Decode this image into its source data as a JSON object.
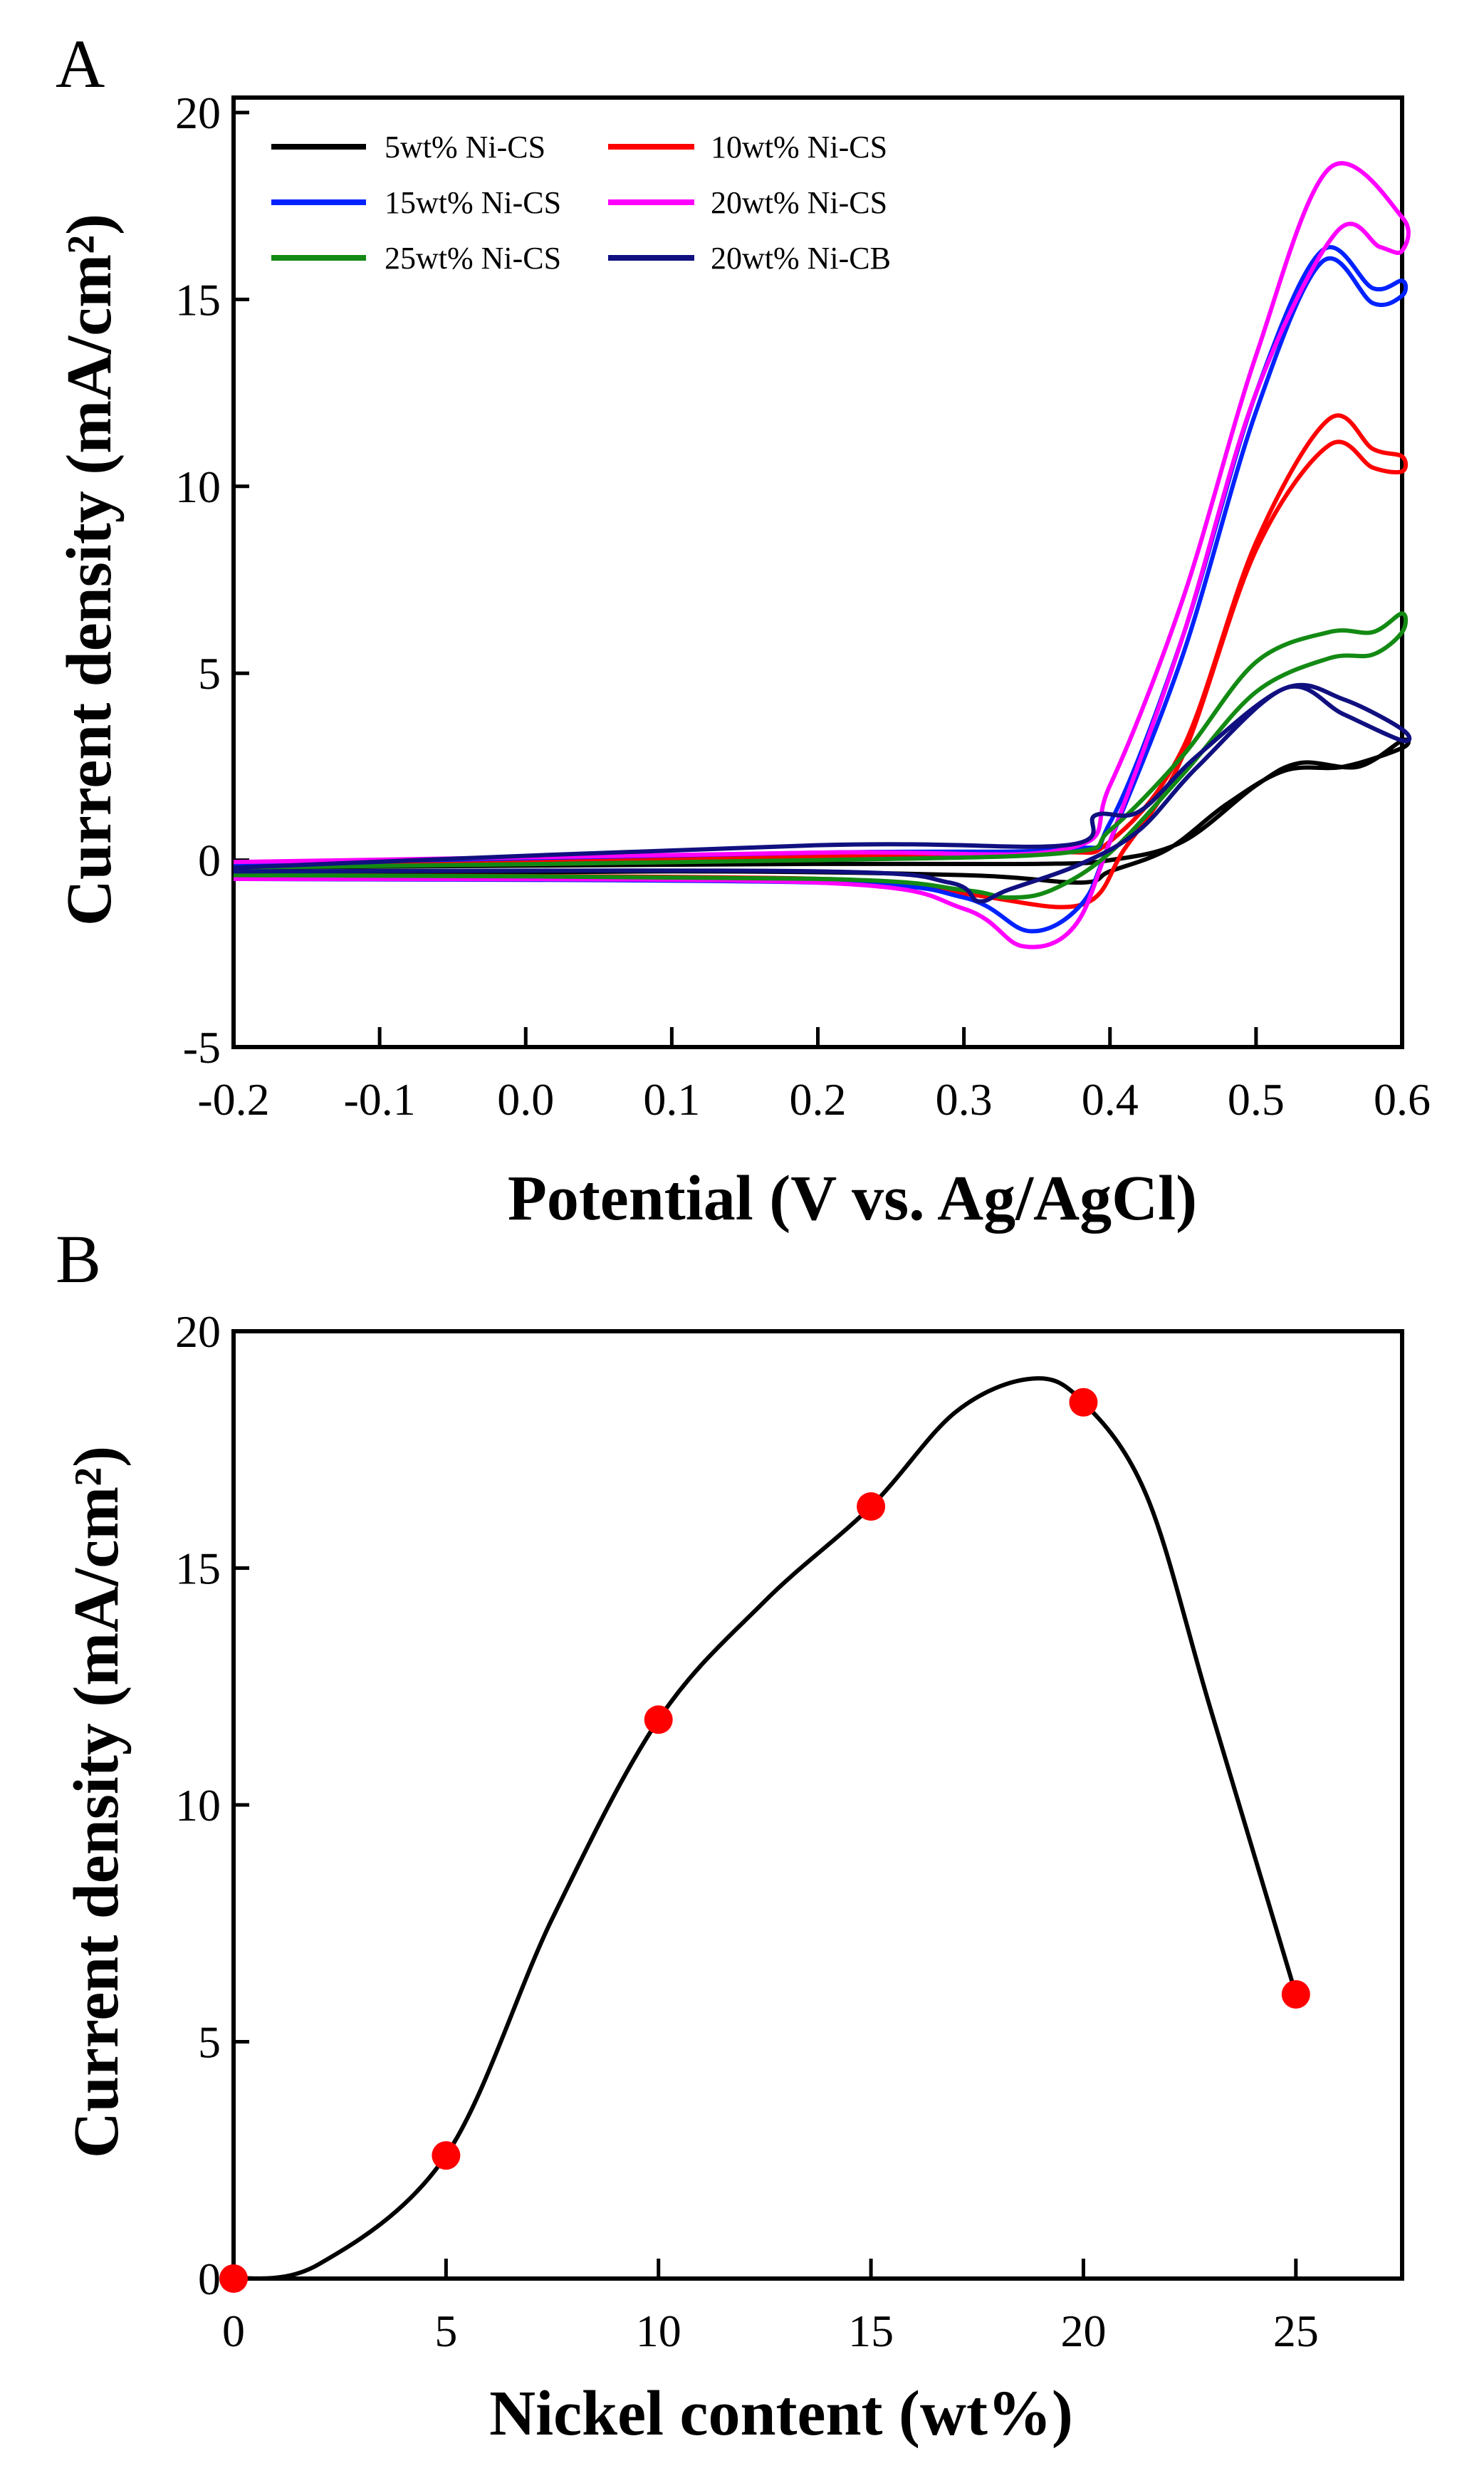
{
  "chart_data": [
    {
      "panel": "A",
      "type": "line",
      "xlabel": "Potential (V vs. Ag/AgCl)",
      "ylabel": "Current density (mA/cm²)",
      "xlim": [
        -0.2,
        0.6
      ],
      "ylim": [
        -5,
        20.4
      ],
      "xticks": [
        -0.2,
        -0.1,
        0.0,
        0.1,
        0.2,
        0.3,
        0.4,
        0.5,
        0.6
      ],
      "xtick_labels": [
        "-0.2",
        "-0.1",
        "0.0",
        "0.1",
        "0.2",
        "0.3",
        "0.4",
        "0.5",
        "0.6"
      ],
      "yticks": [
        -5,
        0,
        5,
        10,
        15,
        20
      ],
      "ytick_labels": [
        "-5",
        "0",
        "5",
        "10",
        "15",
        "20"
      ],
      "legend_position": "top-left",
      "grid": false,
      "series": [
        {
          "name": "5wt% Ni-CS",
          "color": "#000000",
          "points": [
            [
              -0.2,
              -0.2
            ],
            [
              0.2,
              -0.1
            ],
            [
              0.35,
              -0.1
            ],
            [
              0.4,
              0.0
            ],
            [
              0.45,
              0.5
            ],
            [
              0.5,
              2.0
            ],
            [
              0.53,
              2.6
            ],
            [
              0.57,
              2.5
            ],
            [
              0.6,
              3.2
            ],
            [
              0.6,
              3.0
            ],
            [
              0.56,
              2.5
            ],
            [
              0.52,
              2.4
            ],
            [
              0.48,
              1.5
            ],
            [
              0.44,
              0.3
            ],
            [
              0.4,
              -0.3
            ],
            [
              0.38,
              -0.6
            ],
            [
              0.3,
              -0.4
            ],
            [
              0.1,
              -0.3
            ],
            [
              -0.2,
              -0.4
            ]
          ]
        },
        {
          "name": "10wt% Ni-CS",
          "color": "#ff0000",
          "points": [
            [
              -0.2,
              -0.2
            ],
            [
              0.2,
              0.1
            ],
            [
              0.36,
              0.2
            ],
            [
              0.4,
              0.5
            ],
            [
              0.45,
              3.0
            ],
            [
              0.5,
              8.5
            ],
            [
              0.55,
              11.8
            ],
            [
              0.58,
              11.0
            ],
            [
              0.6,
              10.8
            ],
            [
              0.6,
              10.4
            ],
            [
              0.58,
              10.5
            ],
            [
              0.55,
              11.1
            ],
            [
              0.5,
              8.3
            ],
            [
              0.45,
              2.8
            ],
            [
              0.41,
              0.3
            ],
            [
              0.38,
              -1.2
            ],
            [
              0.3,
              -0.9
            ],
            [
              0.2,
              -0.5
            ],
            [
              -0.2,
              -0.4
            ]
          ]
        },
        {
          "name": "15wt% Ni-CS",
          "color": "#0022ff",
          "points": [
            [
              -0.2,
              -0.1
            ],
            [
              0.2,
              0.2
            ],
            [
              0.37,
              0.3
            ],
            [
              0.4,
              1.0
            ],
            [
              0.45,
              6.0
            ],
            [
              0.5,
              12.5
            ],
            [
              0.545,
              16.3
            ],
            [
              0.58,
              15.3
            ],
            [
              0.6,
              15.5
            ],
            [
              0.6,
              15.1
            ],
            [
              0.58,
              14.9
            ],
            [
              0.545,
              16.0
            ],
            [
              0.5,
              12.0
            ],
            [
              0.45,
              5.5
            ],
            [
              0.4,
              0.5
            ],
            [
              0.38,
              -1.2
            ],
            [
              0.345,
              -1.9
            ],
            [
              0.3,
              -1.0
            ],
            [
              0.2,
              -0.6
            ],
            [
              -0.2,
              -0.5
            ]
          ]
        },
        {
          "name": "20wt% Ni-CS",
          "color": "#ff00ff",
          "points": [
            [
              -0.2,
              -0.05
            ],
            [
              0.2,
              0.2
            ],
            [
              0.37,
              0.3
            ],
            [
              0.4,
              2.0
            ],
            [
              0.45,
              7.0
            ],
            [
              0.5,
              13.5
            ],
            [
              0.55,
              18.5
            ],
            [
              0.6,
              17.2
            ],
            [
              0.6,
              16.3
            ],
            [
              0.585,
              16.4
            ],
            [
              0.555,
              16.8
            ],
            [
              0.5,
              12.5
            ],
            [
              0.45,
              6.0
            ],
            [
              0.4,
              0.5
            ],
            [
              0.375,
              -1.8
            ],
            [
              0.34,
              -2.3
            ],
            [
              0.3,
              -1.3
            ],
            [
              0.2,
              -0.6
            ],
            [
              -0.2,
              -0.5
            ]
          ]
        },
        {
          "name": "25wt% Ni-CS",
          "color": "#138a13",
          "points": [
            [
              -0.2,
              -0.2
            ],
            [
              0.2,
              0.0
            ],
            [
              0.37,
              0.2
            ],
            [
              0.4,
              0.8
            ],
            [
              0.45,
              2.8
            ],
            [
              0.5,
              5.3
            ],
            [
              0.55,
              6.1
            ],
            [
              0.58,
              6.1
            ],
            [
              0.6,
              6.6
            ],
            [
              0.6,
              6.1
            ],
            [
              0.58,
              5.5
            ],
            [
              0.55,
              5.4
            ],
            [
              0.5,
              4.5
            ],
            [
              0.45,
              2.3
            ],
            [
              0.4,
              0.2
            ],
            [
              0.36,
              -0.8
            ],
            [
              0.33,
              -1.0
            ],
            [
              0.3,
              -0.8
            ],
            [
              0.2,
              -0.5
            ],
            [
              -0.2,
              -0.4
            ]
          ]
        },
        {
          "name": "20wt% Ni-CB",
          "color": "#101080",
          "points": [
            [
              -0.2,
              -0.2
            ],
            [
              0.2,
              0.4
            ],
            [
              0.37,
              0.4
            ],
            [
              0.39,
              1.2
            ],
            [
              0.42,
              1.3
            ],
            [
              0.46,
              2.8
            ],
            [
              0.52,
              4.6
            ],
            [
              0.56,
              4.3
            ],
            [
              0.6,
              3.5
            ],
            [
              0.6,
              3.2
            ],
            [
              0.56,
              3.9
            ],
            [
              0.52,
              4.6
            ],
            [
              0.46,
              2.5
            ],
            [
              0.42,
              0.8
            ],
            [
              0.38,
              -0.1
            ],
            [
              0.33,
              -0.8
            ],
            [
              0.31,
              -1.1
            ],
            [
              0.29,
              -0.6
            ],
            [
              0.2,
              -0.3
            ],
            [
              -0.2,
              -0.3
            ]
          ]
        }
      ]
    },
    {
      "panel": "B",
      "type": "scatter",
      "xlabel": "Nickel content (wt%)",
      "ylabel": "Current density (mA/cm²)",
      "xlim": [
        0,
        27.5
      ],
      "ylim": [
        0,
        20
      ],
      "xticks": [
        0,
        5,
        10,
        15,
        20,
        25
      ],
      "xtick_labels": [
        "0",
        "5",
        "10",
        "15",
        "20",
        "25"
      ],
      "yticks": [
        0,
        5,
        10,
        15,
        20
      ],
      "ytick_labels": [
        "0",
        "5",
        "10",
        "15",
        "20"
      ],
      "grid": false,
      "marker_color": "#ff0000",
      "line_color": "#000000",
      "x": [
        0,
        5,
        10,
        15,
        20,
        25
      ],
      "y": [
        0,
        2.6,
        11.8,
        16.3,
        18.5,
        6.0
      ],
      "fit_curve": [
        [
          0,
          0
        ],
        [
          2,
          0.3
        ],
        [
          5,
          2.6
        ],
        [
          7.5,
          7.6
        ],
        [
          10,
          11.8
        ],
        [
          12.5,
          14.3
        ],
        [
          15,
          16.3
        ],
        [
          17,
          18.3
        ],
        [
          18.8,
          19.0
        ],
        [
          20,
          18.5
        ],
        [
          21.5,
          16.5
        ],
        [
          23,
          12.0
        ],
        [
          25,
          6.0
        ]
      ]
    }
  ],
  "panels": {
    "a_label": "A",
    "b_label": "B"
  }
}
